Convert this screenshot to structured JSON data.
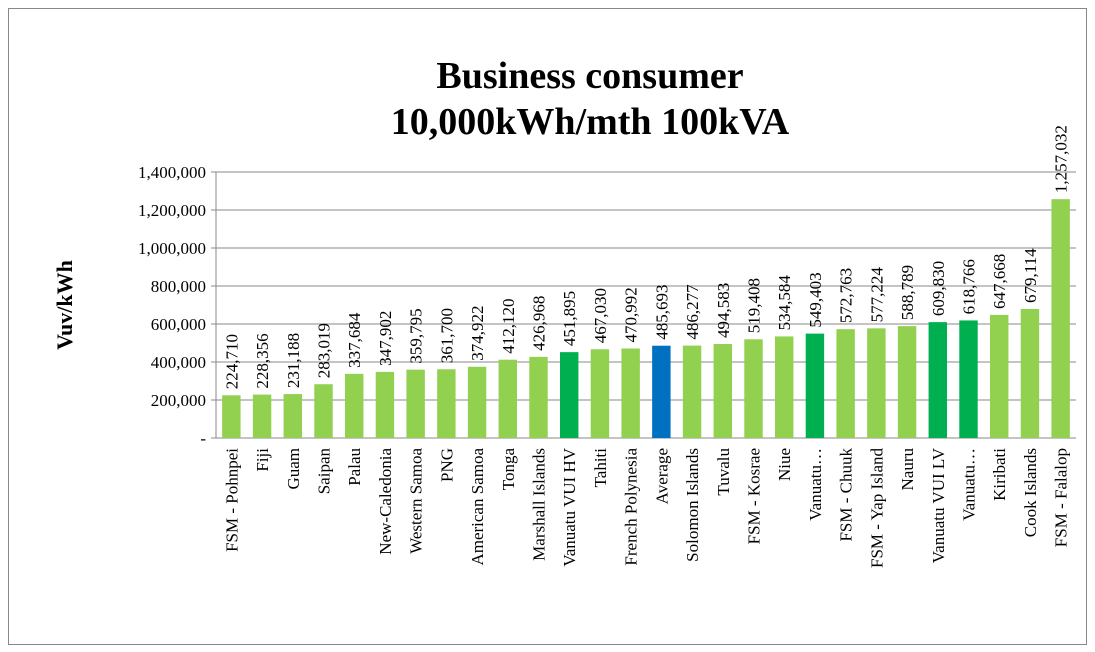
{
  "chart_data": {
    "type": "bar",
    "title": [
      "Business consumer",
      "10,000kWh/mth 100kVA"
    ],
    "y_label": "Vuv/kWh",
    "categories": [
      "FSM - Pohnpei",
      "Fiji",
      "Guam",
      "Saipan",
      "Palau",
      "New-Caledonia",
      "Western Samoa",
      "PNG",
      "American Samoa",
      "Tonga",
      "Marshall Islands",
      "Vanuatu VUI HV",
      "Tahiti",
      "French Polynesia",
      "Average",
      "Solomon Islands",
      "Tuvalu",
      "FSM - Kosrae",
      "Niue",
      "Vanuatu…",
      "FSM - Chuuk",
      "FSM - Yap Island",
      "Nauru",
      "Vanuatu VUI LV",
      "Vanuatu…",
      "Kiribati",
      "Cook Islands",
      "FSM - Falalop"
    ],
    "values": [
      224710,
      228356,
      231188,
      283019,
      337684,
      347902,
      359795,
      361700,
      374922,
      412120,
      426968,
      451895,
      467030,
      470992,
      485693,
      486277,
      494583,
      519408,
      534584,
      549403,
      572763,
      577224,
      588789,
      609830,
      618766,
      647668,
      679114,
      1257032
    ],
    "value_labels": [
      "224,710",
      "228,356",
      "231,188",
      "283,019",
      "337,684",
      "347,902",
      "359,795",
      "361,700",
      "374,922",
      "412,120",
      "426,968",
      "451,895",
      "467,030",
      "470,992",
      "485,693",
      "486,277",
      "494,583",
      "519,408",
      "534,584",
      "549,403",
      "572,763",
      "577,224",
      "588,789",
      "609,830",
      "618,766",
      "647,668",
      "679,114",
      "1,257,032"
    ],
    "colors": [
      "#92d050",
      "#92d050",
      "#92d050",
      "#92d050",
      "#92d050",
      "#92d050",
      "#92d050",
      "#92d050",
      "#92d050",
      "#92d050",
      "#92d050",
      "#00b050",
      "#92d050",
      "#92d050",
      "#0070c0",
      "#92d050",
      "#92d050",
      "#92d050",
      "#92d050",
      "#00b050",
      "#92d050",
      "#92d050",
      "#92d050",
      "#00b050",
      "#00b050",
      "#92d050",
      "#92d050",
      "#92d050"
    ],
    "ylim": [
      0,
      1400000
    ],
    "yticks": [
      {
        "value": 0,
        "label": "-"
      },
      {
        "value": 200000,
        "label": "200,000"
      },
      {
        "value": 400000,
        "label": "400,000"
      },
      {
        "value": 600000,
        "label": "600,000"
      },
      {
        "value": 800000,
        "label": "800,000"
      },
      {
        "value": 1000000,
        "label": "1,000,000"
      },
      {
        "value": 1200000,
        "label": "1,200,000"
      },
      {
        "value": 1400000,
        "label": "1,400,000"
      }
    ],
    "grid": true
  }
}
